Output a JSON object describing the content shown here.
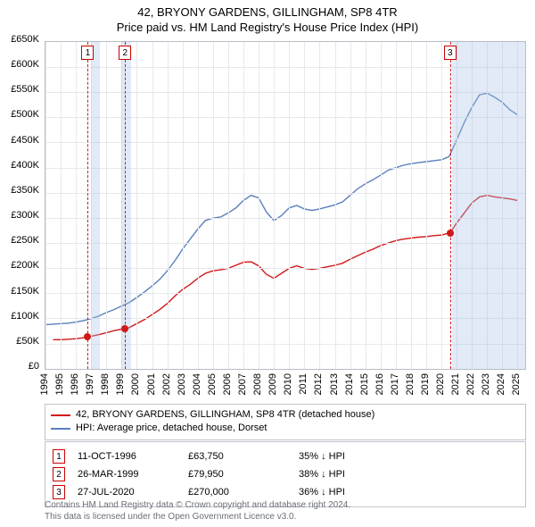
{
  "title_main": "42, BRYONY GARDENS, GILLINGHAM, SP8 4TR",
  "title_sub": "Price paid vs. HM Land Registry's House Price Index (HPI)",
  "chart": {
    "type": "line",
    "x_years": [
      1994,
      1995,
      1996,
      1997,
      1998,
      1999,
      2000,
      2001,
      2002,
      2003,
      2004,
      2005,
      2006,
      2007,
      2008,
      2009,
      2010,
      2011,
      2012,
      2013,
      2014,
      2015,
      2016,
      2017,
      2018,
      2019,
      2020,
      2021,
      2022,
      2023,
      2024,
      2025
    ],
    "xlim": [
      1994,
      2025.5
    ],
    "ylim": [
      0,
      650000
    ],
    "ytick_step": 50000,
    "yticks": [
      "£0",
      "£50K",
      "£100K",
      "£150K",
      "£200K",
      "£250K",
      "£300K",
      "£350K",
      "£400K",
      "£450K",
      "£500K",
      "£550K",
      "£600K",
      "£650K"
    ],
    "grid_color": "#e6e8ec",
    "border_color": "#b7bcc4",
    "background_color": "#ffffff",
    "line1_color": "#d01818",
    "line2_color": "#5a7fbc",
    "line_width": 1.4,
    "dot_color": "#d01818",
    "marker_border": "#cc0000",
    "shade_color": "rgba(170,195,230,0.35)",
    "shaded_ranges": [
      {
        "from": 1997.0,
        "to": 1997.6
      },
      {
        "from": 1999.0,
        "to": 1999.6
      },
      {
        "from": 2020.7,
        "to": 2025.5
      }
    ],
    "markers": [
      {
        "n": "1",
        "year": 1996.78,
        "value": 63750
      },
      {
        "n": "2",
        "year": 1999.23,
        "value": 79950
      },
      {
        "n": "3",
        "year": 2020.57,
        "value": 270000
      }
    ],
    "series1_name": "42, BRYONY GARDENS, GILLINGHAM, SP8 4TR (detached house)",
    "series2_name": "HPI: Average price, detached house, Dorset",
    "series1": [
      [
        1994.5,
        58000
      ],
      [
        1995.0,
        58000
      ],
      [
        1995.5,
        59000
      ],
      [
        1996.0,
        60000
      ],
      [
        1996.5,
        62000
      ],
      [
        1996.78,
        63750
      ],
      [
        1997.0,
        65000
      ],
      [
        1997.5,
        68000
      ],
      [
        1998.0,
        72000
      ],
      [
        1998.5,
        76000
      ],
      [
        1999.0,
        79000
      ],
      [
        1999.23,
        79950
      ],
      [
        1999.5,
        82000
      ],
      [
        2000.0,
        90000
      ],
      [
        2000.5,
        98000
      ],
      [
        2001.0,
        108000
      ],
      [
        2001.5,
        118000
      ],
      [
        2002.0,
        130000
      ],
      [
        2002.5,
        145000
      ],
      [
        2003.0,
        158000
      ],
      [
        2003.5,
        168000
      ],
      [
        2004.0,
        180000
      ],
      [
        2004.5,
        190000
      ],
      [
        2005.0,
        195000
      ],
      [
        2005.5,
        197000
      ],
      [
        2006.0,
        200000
      ],
      [
        2006.5,
        206000
      ],
      [
        2007.0,
        212000
      ],
      [
        2007.5,
        213000
      ],
      [
        2008.0,
        205000
      ],
      [
        2008.5,
        188000
      ],
      [
        2009.0,
        180000
      ],
      [
        2009.5,
        190000
      ],
      [
        2010.0,
        200000
      ],
      [
        2010.5,
        205000
      ],
      [
        2011.0,
        200000
      ],
      [
        2011.5,
        198000
      ],
      [
        2012.0,
        200000
      ],
      [
        2012.5,
        203000
      ],
      [
        2013.0,
        206000
      ],
      [
        2013.5,
        210000
      ],
      [
        2014.0,
        218000
      ],
      [
        2014.5,
        225000
      ],
      [
        2015.0,
        232000
      ],
      [
        2015.5,
        238000
      ],
      [
        2016.0,
        245000
      ],
      [
        2016.5,
        250000
      ],
      [
        2017.0,
        255000
      ],
      [
        2017.5,
        258000
      ],
      [
        2018.0,
        260000
      ],
      [
        2018.5,
        262000
      ],
      [
        2019.0,
        263000
      ],
      [
        2019.5,
        265000
      ],
      [
        2020.0,
        266000
      ],
      [
        2020.5,
        270000
      ],
      [
        2020.57,
        270000
      ],
      [
        2021.0,
        290000
      ],
      [
        2021.5,
        310000
      ],
      [
        2022.0,
        330000
      ],
      [
        2022.5,
        342000
      ],
      [
        2023.0,
        345000
      ],
      [
        2023.5,
        342000
      ],
      [
        2024.0,
        340000
      ],
      [
        2024.5,
        338000
      ],
      [
        2025.0,
        335000
      ]
    ],
    "series2": [
      [
        1994.0,
        88000
      ],
      [
        1994.5,
        89000
      ],
      [
        1995.0,
        90000
      ],
      [
        1995.5,
        91000
      ],
      [
        1996.0,
        93000
      ],
      [
        1996.5,
        96000
      ],
      [
        1997.0,
        100000
      ],
      [
        1997.5,
        105000
      ],
      [
        1998.0,
        112000
      ],
      [
        1998.5,
        118000
      ],
      [
        1999.0,
        125000
      ],
      [
        1999.5,
        132000
      ],
      [
        2000.0,
        142000
      ],
      [
        2000.5,
        153000
      ],
      [
        2001.0,
        165000
      ],
      [
        2001.5,
        178000
      ],
      [
        2002.0,
        195000
      ],
      [
        2002.5,
        215000
      ],
      [
        2003.0,
        238000
      ],
      [
        2003.5,
        258000
      ],
      [
        2004.0,
        278000
      ],
      [
        2004.5,
        295000
      ],
      [
        2005.0,
        300000
      ],
      [
        2005.5,
        302000
      ],
      [
        2006.0,
        310000
      ],
      [
        2006.5,
        320000
      ],
      [
        2007.0,
        335000
      ],
      [
        2007.5,
        345000
      ],
      [
        2008.0,
        340000
      ],
      [
        2008.5,
        312000
      ],
      [
        2009.0,
        295000
      ],
      [
        2009.5,
        305000
      ],
      [
        2010.0,
        320000
      ],
      [
        2010.5,
        325000
      ],
      [
        2011.0,
        318000
      ],
      [
        2011.5,
        315000
      ],
      [
        2012.0,
        318000
      ],
      [
        2012.5,
        322000
      ],
      [
        2013.0,
        326000
      ],
      [
        2013.5,
        332000
      ],
      [
        2014.0,
        345000
      ],
      [
        2014.5,
        358000
      ],
      [
        2015.0,
        368000
      ],
      [
        2015.5,
        376000
      ],
      [
        2016.0,
        385000
      ],
      [
        2016.5,
        395000
      ],
      [
        2017.0,
        400000
      ],
      [
        2017.5,
        405000
      ],
      [
        2018.0,
        408000
      ],
      [
        2018.5,
        410000
      ],
      [
        2019.0,
        412000
      ],
      [
        2019.5,
        414000
      ],
      [
        2020.0,
        416000
      ],
      [
        2020.5,
        422000
      ],
      [
        2021.0,
        455000
      ],
      [
        2021.5,
        490000
      ],
      [
        2022.0,
        520000
      ],
      [
        2022.5,
        545000
      ],
      [
        2023.0,
        548000
      ],
      [
        2023.5,
        540000
      ],
      [
        2024.0,
        530000
      ],
      [
        2024.5,
        515000
      ],
      [
        2025.0,
        505000
      ]
    ]
  },
  "legend": {
    "row1_color": "#d01818",
    "row2_color": "#5a7fbc"
  },
  "transactions": [
    {
      "n": "1",
      "date": "11-OCT-1996",
      "price": "£63,750",
      "diff": "35% ↓ HPI"
    },
    {
      "n": "2",
      "date": "26-MAR-1999",
      "price": "£79,950",
      "diff": "38% ↓ HPI"
    },
    {
      "n": "3",
      "date": "27-JUL-2020",
      "price": "£270,000",
      "diff": "36% ↓ HPI"
    }
  ],
  "footer_l1": "Contains HM Land Registry data © Crown copyright and database right 2024.",
  "footer_l2": "This data is licensed under the Open Government Licence v3.0."
}
